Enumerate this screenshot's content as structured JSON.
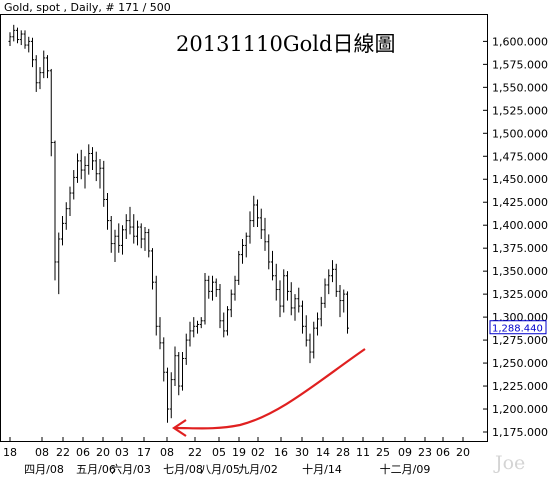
{
  "header": {
    "text": "Gold, spot , Daily, # 171 / 500"
  },
  "title": "20131110Gold日線圖",
  "watermark": "Joe",
  "colors": {
    "bars": "#000000",
    "arrow": "#e02020",
    "last_value_box": "#0000cc",
    "grid": "#000000"
  },
  "chart_data": {
    "type": "ohlc",
    "title": "20131110Gold日線圖",
    "ylim": [
      1170,
      1620
    ],
    "y_ticks": [
      1175,
      1200,
      1225,
      1250,
      1275,
      1300,
      1325,
      1350,
      1375,
      1400,
      1425,
      1450,
      1475,
      1500,
      1525,
      1550,
      1575,
      1600
    ],
    "y_tick_labels": [
      "1,175.000",
      "1,200.000",
      "1,225.000",
      "1,250.000",
      "1,275.000",
      "1,300.000",
      "1,325.000",
      "1,350.000",
      "1,375.000",
      "1,400.000",
      "1,425.000",
      "1,450.000",
      "1,475.000",
      "1,500.000",
      "1,525.000",
      "1,550.000",
      "1,575.000",
      "1,600.000"
    ],
    "x_day_labels": [
      "18",
      "08",
      "22",
      "06",
      "20",
      "03",
      "17",
      "08",
      "22",
      "05",
      "19",
      "02",
      "16",
      "30",
      "14",
      "28",
      "11",
      "25",
      "09",
      "23",
      "06",
      "20"
    ],
    "x_month_labels": [
      "四月/08",
      "五月/06",
      "六月/03",
      "七月/08",
      "八月/05",
      "九月/02",
      "十月/14",
      "十二月/09"
    ],
    "last_value": "1,288.440",
    "grid": false,
    "series": [
      {
        "values": [
          [
            1600,
            1610,
            1595,
            1605
          ],
          [
            1605,
            1618,
            1600,
            1612
          ],
          [
            1612,
            1615,
            1598,
            1602
          ],
          [
            1602,
            1612,
            1596,
            1608
          ],
          [
            1608,
            1612,
            1592,
            1596
          ],
          [
            1596,
            1605,
            1588,
            1600
          ],
          [
            1600,
            1604,
            1572,
            1580
          ],
          [
            1580,
            1585,
            1545,
            1555
          ],
          [
            1555,
            1572,
            1548,
            1566
          ],
          [
            1566,
            1590,
            1560,
            1582
          ],
          [
            1582,
            1585,
            1560,
            1568
          ],
          [
            1568,
            1570,
            1475,
            1490
          ],
          [
            1490,
            1492,
            1340,
            1360
          ],
          [
            1360,
            1392,
            1325,
            1385
          ],
          [
            1385,
            1410,
            1378,
            1402
          ],
          [
            1402,
            1425,
            1395,
            1418
          ],
          [
            1418,
            1442,
            1410,
            1435
          ],
          [
            1435,
            1460,
            1428,
            1452
          ],
          [
            1452,
            1478,
            1446,
            1470
          ],
          [
            1470,
            1482,
            1450,
            1460
          ],
          [
            1460,
            1475,
            1440,
            1465
          ],
          [
            1465,
            1488,
            1455,
            1478
          ],
          [
            1478,
            1485,
            1460,
            1470
          ],
          [
            1470,
            1480,
            1448,
            1456
          ],
          [
            1456,
            1472,
            1440,
            1462
          ],
          [
            1462,
            1470,
            1420,
            1428
          ],
          [
            1428,
            1435,
            1395,
            1405
          ],
          [
            1405,
            1410,
            1370,
            1380
          ],
          [
            1380,
            1395,
            1360,
            1388
          ],
          [
            1388,
            1402,
            1370,
            1378
          ],
          [
            1378,
            1400,
            1368,
            1395
          ],
          [
            1395,
            1412,
            1385,
            1405
          ],
          [
            1405,
            1420,
            1390,
            1398
          ],
          [
            1398,
            1412,
            1380,
            1388
          ],
          [
            1388,
            1405,
            1378,
            1398
          ],
          [
            1398,
            1402,
            1375,
            1385
          ],
          [
            1385,
            1398,
            1372,
            1392
          ],
          [
            1392,
            1396,
            1365,
            1372
          ],
          [
            1372,
            1375,
            1330,
            1338
          ],
          [
            1338,
            1345,
            1280,
            1290
          ],
          [
            1290,
            1300,
            1265,
            1272
          ],
          [
            1272,
            1278,
            1230,
            1240
          ],
          [
            1240,
            1245,
            1185,
            1200
          ],
          [
            1200,
            1240,
            1190,
            1232
          ],
          [
            1232,
            1268,
            1225,
            1258
          ],
          [
            1258,
            1262,
            1215,
            1225
          ],
          [
            1225,
            1262,
            1220,
            1255
          ],
          [
            1255,
            1282,
            1248,
            1275
          ],
          [
            1275,
            1295,
            1268,
            1285
          ],
          [
            1285,
            1300,
            1278,
            1290
          ],
          [
            1290,
            1296,
            1282,
            1292
          ],
          [
            1292,
            1300,
            1288,
            1296
          ],
          [
            1296,
            1348,
            1292,
            1340
          ],
          [
            1340,
            1345,
            1320,
            1328
          ],
          [
            1328,
            1345,
            1318,
            1338
          ],
          [
            1338,
            1342,
            1322,
            1330
          ],
          [
            1330,
            1336,
            1288,
            1296
          ],
          [
            1296,
            1305,
            1278,
            1285
          ],
          [
            1285,
            1312,
            1280,
            1308
          ],
          [
            1308,
            1330,
            1300,
            1325
          ],
          [
            1325,
            1345,
            1318,
            1340
          ],
          [
            1340,
            1372,
            1335,
            1368
          ],
          [
            1368,
            1385,
            1358,
            1378
          ],
          [
            1378,
            1392,
            1365,
            1388
          ],
          [
            1388,
            1415,
            1380,
            1405
          ],
          [
            1405,
            1432,
            1398,
            1422
          ],
          [
            1422,
            1428,
            1398,
            1408
          ],
          [
            1408,
            1418,
            1385,
            1395
          ],
          [
            1395,
            1408,
            1372,
            1382
          ],
          [
            1382,
            1390,
            1352,
            1360
          ],
          [
            1360,
            1372,
            1340,
            1345
          ],
          [
            1345,
            1358,
            1318,
            1330
          ],
          [
            1330,
            1340,
            1300,
            1312
          ],
          [
            1312,
            1352,
            1305,
            1345
          ],
          [
            1345,
            1350,
            1318,
            1328
          ],
          [
            1328,
            1338,
            1302,
            1310
          ],
          [
            1310,
            1325,
            1296,
            1320
          ],
          [
            1320,
            1332,
            1305,
            1312
          ],
          [
            1312,
            1318,
            1282,
            1290
          ],
          [
            1290,
            1302,
            1268,
            1275
          ],
          [
            1275,
            1282,
            1250,
            1262
          ],
          [
            1262,
            1295,
            1255,
            1288
          ],
          [
            1288,
            1305,
            1280,
            1298
          ],
          [
            1298,
            1322,
            1290,
            1315
          ],
          [
            1315,
            1342,
            1310,
            1335
          ],
          [
            1335,
            1352,
            1325,
            1345
          ],
          [
            1345,
            1362,
            1338,
            1352
          ],
          [
            1352,
            1358,
            1322,
            1328
          ],
          [
            1328,
            1335,
            1300,
            1318
          ],
          [
            1318,
            1330,
            1305,
            1325
          ],
          [
            1325,
            1328,
            1282,
            1288
          ]
        ]
      }
    ]
  }
}
